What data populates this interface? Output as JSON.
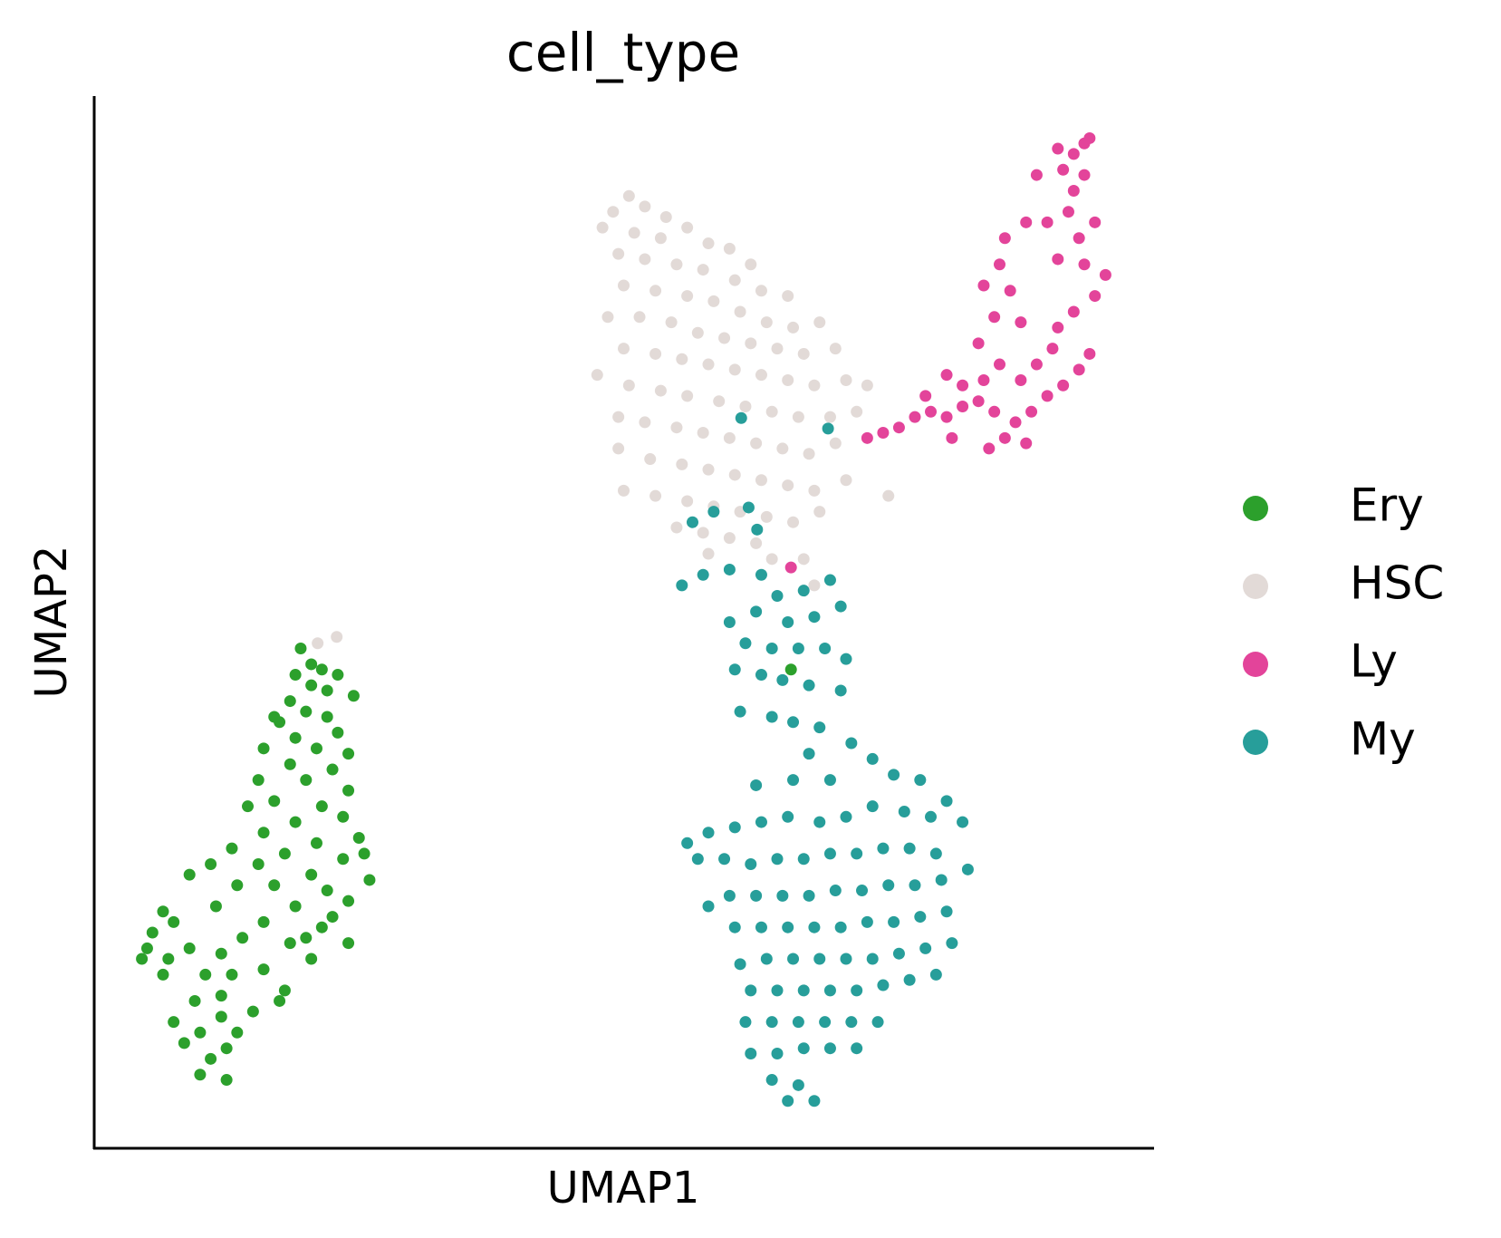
{
  "chart_data": {
    "type": "scatter",
    "title": "cell_type",
    "x_label": "UMAP1",
    "y_label": "UMAP2",
    "xlim": [
      0,
      100
    ],
    "ylim": [
      0,
      100
    ],
    "legend": "right",
    "series": [
      {
        "name": "Ery",
        "color": "#2ca02c",
        "x": [
          19.5,
          20.5,
          21.5,
          19,
          23,
          20.5,
          22,
          18.5,
          24.5,
          20,
          22,
          17.5,
          23,
          19,
          21,
          24,
          16,
          22.5,
          18.5,
          20,
          15.5,
          24,
          17,
          21.5,
          23.5,
          14.5,
          19,
          16,
          25,
          21,
          18,
          13,
          23.5,
          15.5,
          11,
          20.5,
          26,
          17,
          22,
          9,
          13.5,
          24,
          19,
          11.5,
          6.5,
          7.5,
          16,
          21.5,
          5.5,
          14,
          18.5,
          24,
          9,
          12,
          5,
          20.5,
          16,
          10.5,
          13,
          6.5,
          18,
          12,
          9.5,
          17.5,
          15,
          12,
          7.5,
          10,
          13.5,
          8.5,
          12.5,
          11,
          10,
          12.5,
          7,
          4.5,
          22.5,
          20,
          25.5,
          17,
          65.8
        ],
        "y": [
          47.5,
          46,
          45.5,
          45,
          45,
          44,
          43.5,
          42.5,
          43,
          41.5,
          41,
          40.5,
          39.5,
          39,
          38,
          37.5,
          38,
          36,
          36.5,
          35,
          35,
          34,
          33,
          32.5,
          31.5,
          32.5,
          31,
          30,
          29.5,
          29,
          28,
          28.5,
          27.5,
          27,
          27,
          26,
          25.5,
          25,
          24.5,
          26,
          25,
          23.5,
          23,
          23,
          22.5,
          21.5,
          21.5,
          21,
          20.5,
          20,
          19.5,
          19.5,
          19,
          18.5,
          19,
          18,
          17,
          16.5,
          16.5,
          16.5,
          15,
          14.5,
          14,
          14,
          13,
          12.5,
          12,
          11,
          11,
          10,
          9.5,
          8.5,
          7,
          6.5,
          18,
          18,
          22,
          20,
          28,
          41,
          45.5
        ]
      },
      {
        "name": "HSC",
        "color": "#e2dad7",
        "x": [
          49,
          50.5,
          52,
          54,
          48,
          51,
          53.5,
          56,
          58,
          60,
          62,
          49.5,
          52,
          55,
          57.5,
          60.5,
          63,
          65.5,
          50,
          53,
          56,
          58.5,
          61,
          63.5,
          66,
          68.5,
          48.5,
          51.5,
          54.5,
          57,
          59.5,
          62,
          64.5,
          67,
          70,
          50,
          53,
          55.5,
          58,
          60.5,
          63,
          65.5,
          68,
          71,
          73,
          47.5,
          50.5,
          53.5,
          56,
          59,
          61.5,
          64,
          66.5,
          69.5,
          72,
          49.5,
          52,
          55,
          57.5,
          60,
          62.5,
          65,
          67.5,
          70,
          49.5,
          52.5,
          55.5,
          58,
          60.5,
          63,
          65.5,
          68,
          71,
          50,
          53,
          56,
          58.5,
          61,
          63.5,
          66,
          68.5,
          55,
          57.5,
          60,
          62.5,
          58,
          64,
          67,
          68,
          75,
          21.1,
          22.9
        ],
        "y": [
          89,
          90.5,
          89.5,
          88.5,
          87.5,
          87,
          86.5,
          87.5,
          86,
          85.5,
          84,
          85,
          84.5,
          84,
          83.5,
          82.5,
          81.5,
          81,
          82,
          81.5,
          81,
          80.5,
          79.5,
          78.5,
          78,
          78.5,
          79,
          79,
          78.5,
          77.5,
          77,
          76.5,
          76,
          75.5,
          76,
          76,
          75.5,
          75,
          74.5,
          74,
          73.5,
          73,
          72.5,
          73,
          72.5,
          73.5,
          72.5,
          72,
          71.5,
          71,
          70.5,
          70,
          69.5,
          69.5,
          70,
          69.5,
          69,
          68.5,
          68,
          67.5,
          67,
          66.5,
          66,
          67,
          66.5,
          65.5,
          65,
          64.5,
          64,
          63.5,
          63,
          62.5,
          63.5,
          62.5,
          62,
          61.5,
          61,
          60.5,
          60,
          59.5,
          60.5,
          59,
          58.5,
          58,
          57.5,
          56.5,
          56,
          56,
          53.5,
          62,
          48,
          48.6
        ]
      },
      {
        "name": "Ly",
        "color": "#e3449a",
        "x": [
          73,
          74.5,
          76,
          77.5,
          79,
          80.5,
          82,
          83.5,
          85,
          86,
          84.5,
          87,
          88.5,
          90,
          91.5,
          93,
          94,
          82,
          84,
          85.5,
          87.5,
          89,
          90.5,
          91,
          92.5,
          94.5,
          95.5,
          93.5,
          91,
          93,
          94.5,
          92,
          90,
          92.5,
          93.5,
          91.5,
          92.5,
          93.5,
          91,
          94,
          89,
          88,
          86,
          85.5,
          84,
          86.5,
          87.5,
          85,
          83.5,
          80.5,
          78.5,
          81,
          88,
          65.8
        ],
        "y": [
          67.5,
          68,
          68.5,
          69.5,
          70,
          69.5,
          70.5,
          71,
          70,
          67.5,
          66.5,
          69,
          70,
          71.5,
          72.5,
          74,
          75.5,
          72.5,
          73,
          74.5,
          73,
          74.5,
          76,
          78,
          79.5,
          81,
          83,
          84,
          84.5,
          86.5,
          88,
          89,
          88,
          91,
          92.5,
          93,
          94.5,
          95.5,
          95,
          96,
          92.5,
          88,
          86.5,
          84,
          82,
          81.5,
          78.5,
          79,
          76.5,
          73.5,
          71.5,
          67.5,
          67,
          55.2
        ]
      },
      {
        "name": "My",
        "color": "#279e9a",
        "x": [
          55.5,
          57.5,
          60,
          63,
          64.5,
          67,
          69.5,
          70.5,
          68,
          65.5,
          62.5,
          60,
          61.5,
          64,
          66.5,
          69,
          71,
          60.5,
          63,
          65,
          67.5,
          70.5,
          61,
          64,
          66,
          68.5,
          71.5,
          73.5,
          67.5,
          69.5,
          66,
          62.5,
          75.5,
          78,
          80.5,
          82,
          79,
          76.5,
          73.5,
          71,
          68.5,
          65.5,
          63,
          60.5,
          58,
          56,
          57,
          59.5,
          62,
          64.5,
          67,
          69.5,
          72,
          74.5,
          77,
          79.5,
          82.5,
          80,
          77.5,
          75,
          72.5,
          70,
          67.5,
          65,
          62.5,
          60,
          58,
          60.5,
          63,
          65.5,
          68,
          70.5,
          73,
          75.5,
          78,
          80.5,
          81,
          78.5,
          76,
          73.5,
          71,
          68.5,
          66,
          63.5,
          61,
          62,
          64.5,
          67,
          69.5,
          72,
          74.5,
          77,
          79.5,
          61.5,
          64,
          66.5,
          69,
          71.5,
          74,
          62,
          64.5,
          67,
          69.5,
          72,
          64,
          66.5,
          68,
          65.5,
          56.5,
          58.5,
          61.1,
          69.3,
          61.8,
          62.6
        ],
        "y": [
          53.5,
          54.5,
          55,
          54.5,
          52.5,
          53,
          54,
          51.5,
          50.5,
          50,
          51,
          50,
          48,
          47.5,
          47.5,
          47.5,
          46.5,
          45.5,
          45,
          44.5,
          44,
          43.5,
          41.5,
          41,
          40.5,
          40,
          38.5,
          37,
          37.5,
          35,
          35,
          34.5,
          35.5,
          35,
          33,
          31,
          31.5,
          32,
          32.5,
          31.5,
          31,
          31.5,
          31,
          30.5,
          30,
          29,
          27.5,
          27.5,
          27,
          27.5,
          27.5,
          28,
          28,
          28.5,
          28.5,
          28,
          26.5,
          25.5,
          25,
          25,
          24.5,
          24.5,
          24,
          24,
          24,
          24,
          23,
          21,
          21,
          21,
          21,
          21,
          21.5,
          21.5,
          22,
          22.5,
          19.5,
          19,
          18.5,
          18,
          18,
          18,
          18,
          18,
          17.5,
          15,
          15,
          15,
          15,
          15,
          15.5,
          16,
          16.5,
          12,
          12,
          12,
          12,
          12,
          12,
          9,
          9,
          9.5,
          9.5,
          9.5,
          6.5,
          6,
          4.5,
          4.5,
          59.5,
          60.5,
          69.4,
          68.4,
          60.9,
          58.8
        ]
      }
    ]
  }
}
